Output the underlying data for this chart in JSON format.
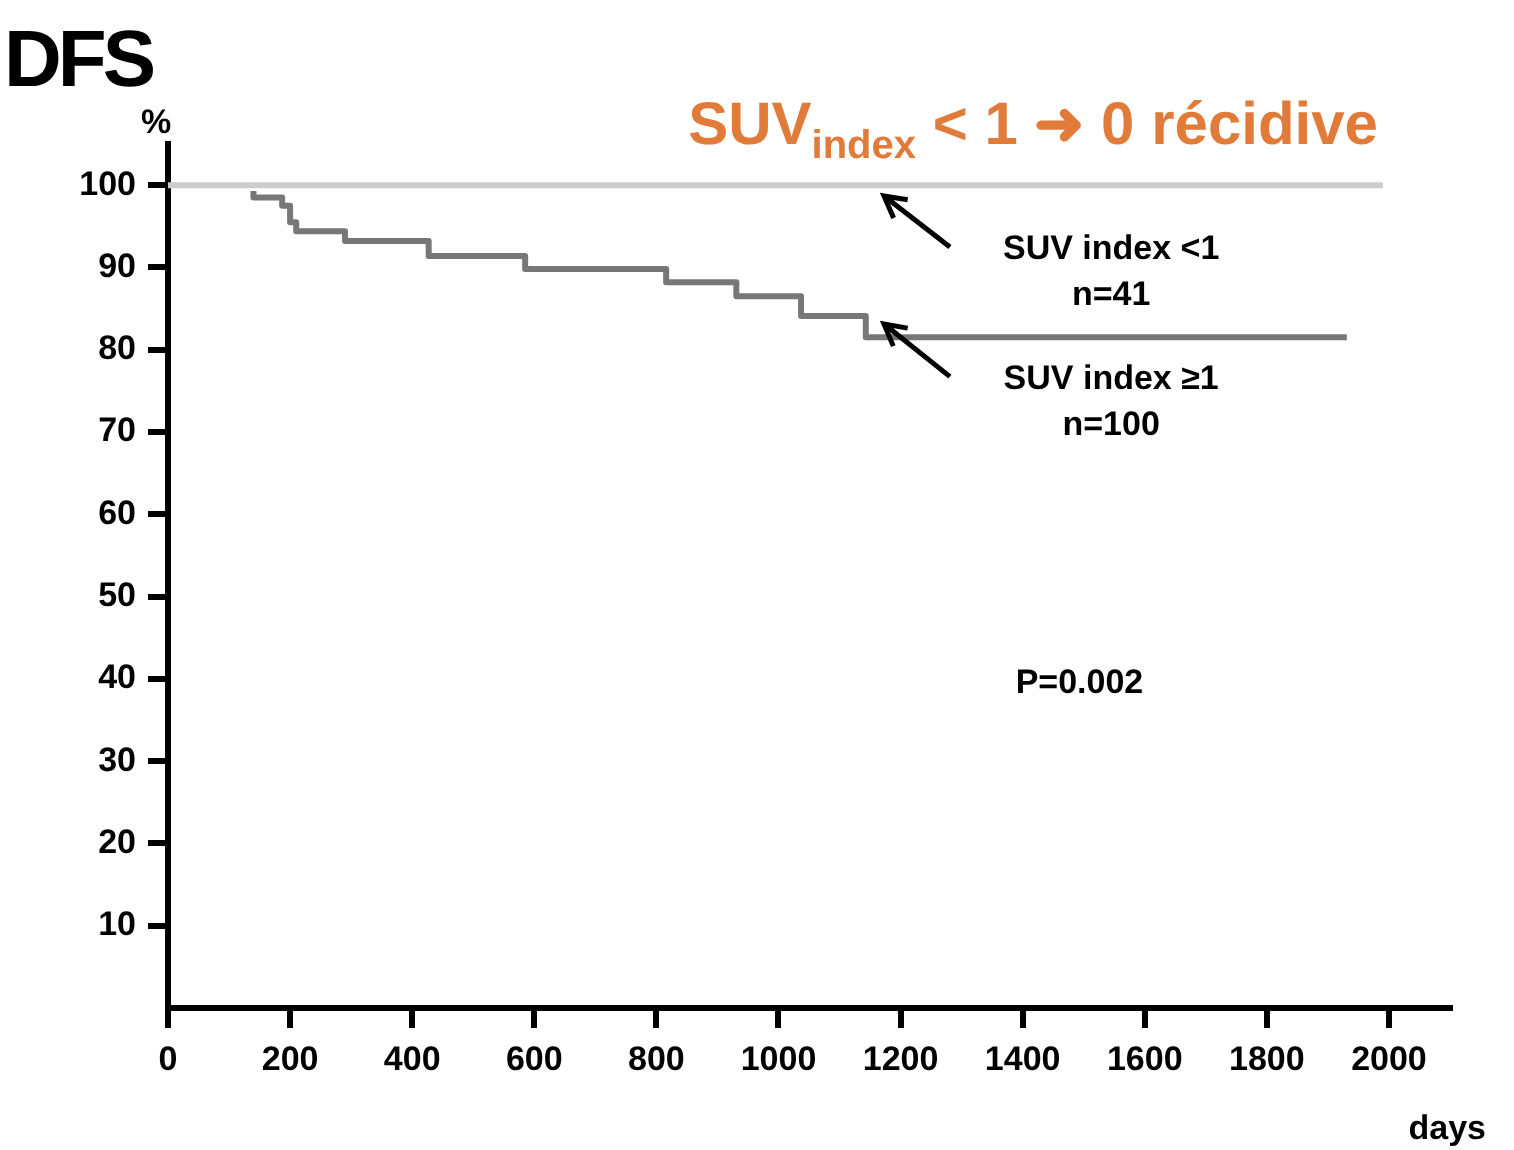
{
  "chart_data": {
    "type": "step",
    "title": "DFS",
    "subtitle": "SUV$_{index}$ < 1 ➜ 0 récidive",
    "xlabel": "days",
    "ylabel": "%",
    "xlim": [
      0,
      2100
    ],
    "xticks": [
      0,
      200,
      400,
      600,
      800,
      1000,
      1200,
      1400,
      1600,
      1800,
      2000
    ],
    "ylim": [
      0,
      105
    ],
    "yticks": [
      10,
      20,
      30,
      40,
      50,
      60,
      70,
      80,
      90,
      100
    ],
    "grid": false,
    "legend": false,
    "series": [
      {
        "name": "SUV index <1",
        "color": "#cccccc",
        "x": [
          0,
          1990
        ],
        "values": [
          100,
          100
        ]
      },
      {
        "name": "SUV index ≥1",
        "color": "#777777",
        "x": [
          140,
          187,
          200,
          210,
          290,
          427,
          585,
          816,
          931,
          1037,
          1143,
          1240,
          1931
        ],
        "values": [
          99.3,
          98.5,
          97.5,
          95.5,
          94.4,
          93.2,
          91.4,
          89.8,
          88.2,
          86.5,
          84.1,
          81.5,
          81.5
        ]
      }
    ],
    "annotations": [
      "n=41",
      "n=100",
      "P=0.002"
    ]
  }
}
